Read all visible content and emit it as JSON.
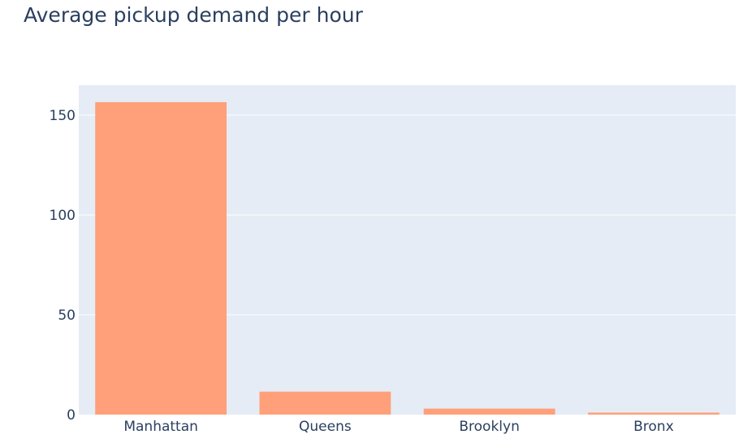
{
  "chart_data": {
    "type": "bar",
    "title": "Average pickup demand per hour",
    "xlabel": "",
    "ylabel": "",
    "categories": [
      "Manhattan",
      "Queens",
      "Brooklyn",
      "Bronx"
    ],
    "values": [
      156.5,
      11.5,
      3.0,
      1.0
    ],
    "ylim": [
      0,
      165
    ],
    "yticks": [
      0,
      50,
      100,
      150
    ],
    "grid": true,
    "legend": "none",
    "colors": {
      "bar": "#ffa07a",
      "plot_background": "#e5ecf6",
      "gridline": "#ffffff",
      "text": "#2a3f5f"
    }
  }
}
